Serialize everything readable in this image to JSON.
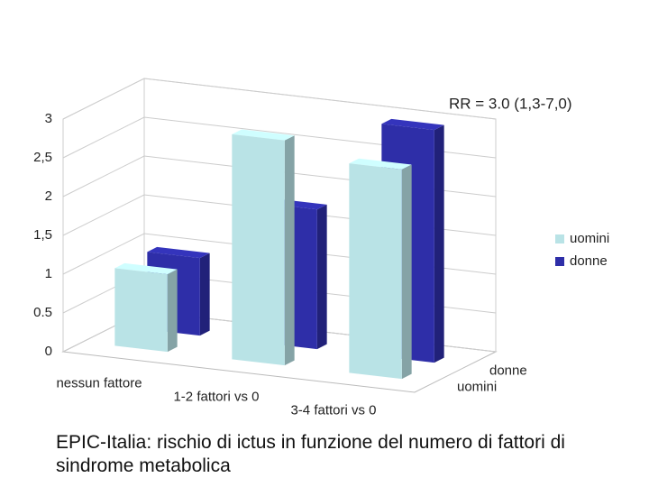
{
  "chart_data": {
    "type": "bar3d",
    "title": "EPIC-Italia: rischio di ictus in funzione del numero di fattori di sindrome metabolica",
    "annotation": "RR = 3.0 (1,3-7,0)",
    "categories": [
      "nessun fattore",
      "1-2 fattori vs 0",
      "3-4 fattori vs 0"
    ],
    "series": [
      {
        "name": "uomini",
        "color": "#b9e3e6",
        "values": [
          1.0,
          2.9,
          2.7
        ]
      },
      {
        "name": "donne",
        "color": "#2e2ea8",
        "values": [
          1.0,
          1.8,
          3.0
        ]
      }
    ],
    "ylim": [
      0,
      3
    ],
    "yticks": [
      0,
      0.5,
      1,
      {
        "value": 1.5,
        "label": "1,5"
      },
      2,
      {
        "value": 2.5,
        "label": "2,5"
      },
      3
    ],
    "grid": true,
    "legend": "right"
  }
}
